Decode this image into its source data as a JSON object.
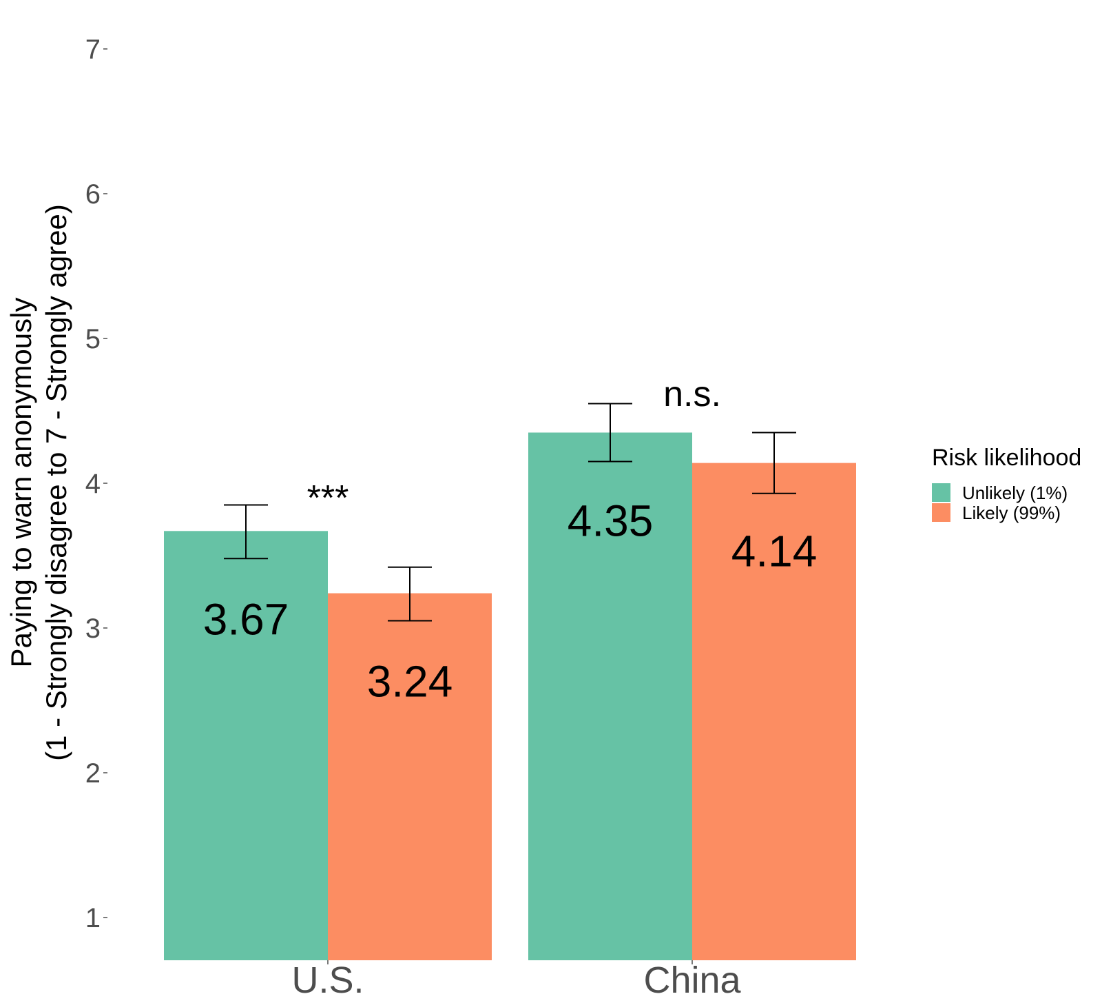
{
  "chart_data": {
    "type": "bar",
    "ylabel_line1": "Paying to warn anonymously",
    "ylabel_line2": "(1 - Strongly disagree to 7 - Strongly agree)",
    "xlabel": "",
    "ylim": [
      0.7,
      7.1
    ],
    "yticks": [
      1,
      2,
      3,
      4,
      5,
      6,
      7
    ],
    "categories": [
      "U.S.",
      "China"
    ],
    "series": [
      {
        "name": "Unlikely (1%)",
        "color": "#66c2a5",
        "values": [
          3.67,
          4.35
        ],
        "labels": [
          "3.67",
          "4.35"
        ],
        "error_low": [
          3.48,
          4.15
        ],
        "error_high": [
          3.85,
          4.55
        ]
      },
      {
        "name": "Likely (99%)",
        "color": "#fc8d62",
        "values": [
          3.24,
          4.14
        ],
        "labels": [
          "3.24",
          "4.14"
        ],
        "error_low": [
          3.05,
          3.93
        ],
        "error_high": [
          3.42,
          4.35
        ]
      }
    ],
    "annotations": [
      {
        "category": "U.S.",
        "text": "***",
        "y": 3.9
      },
      {
        "category": "China",
        "text": "n.s.",
        "y": 4.62
      }
    ],
    "legend": {
      "title": "Risk likelihood",
      "placement": "right"
    },
    "grid": false
  }
}
